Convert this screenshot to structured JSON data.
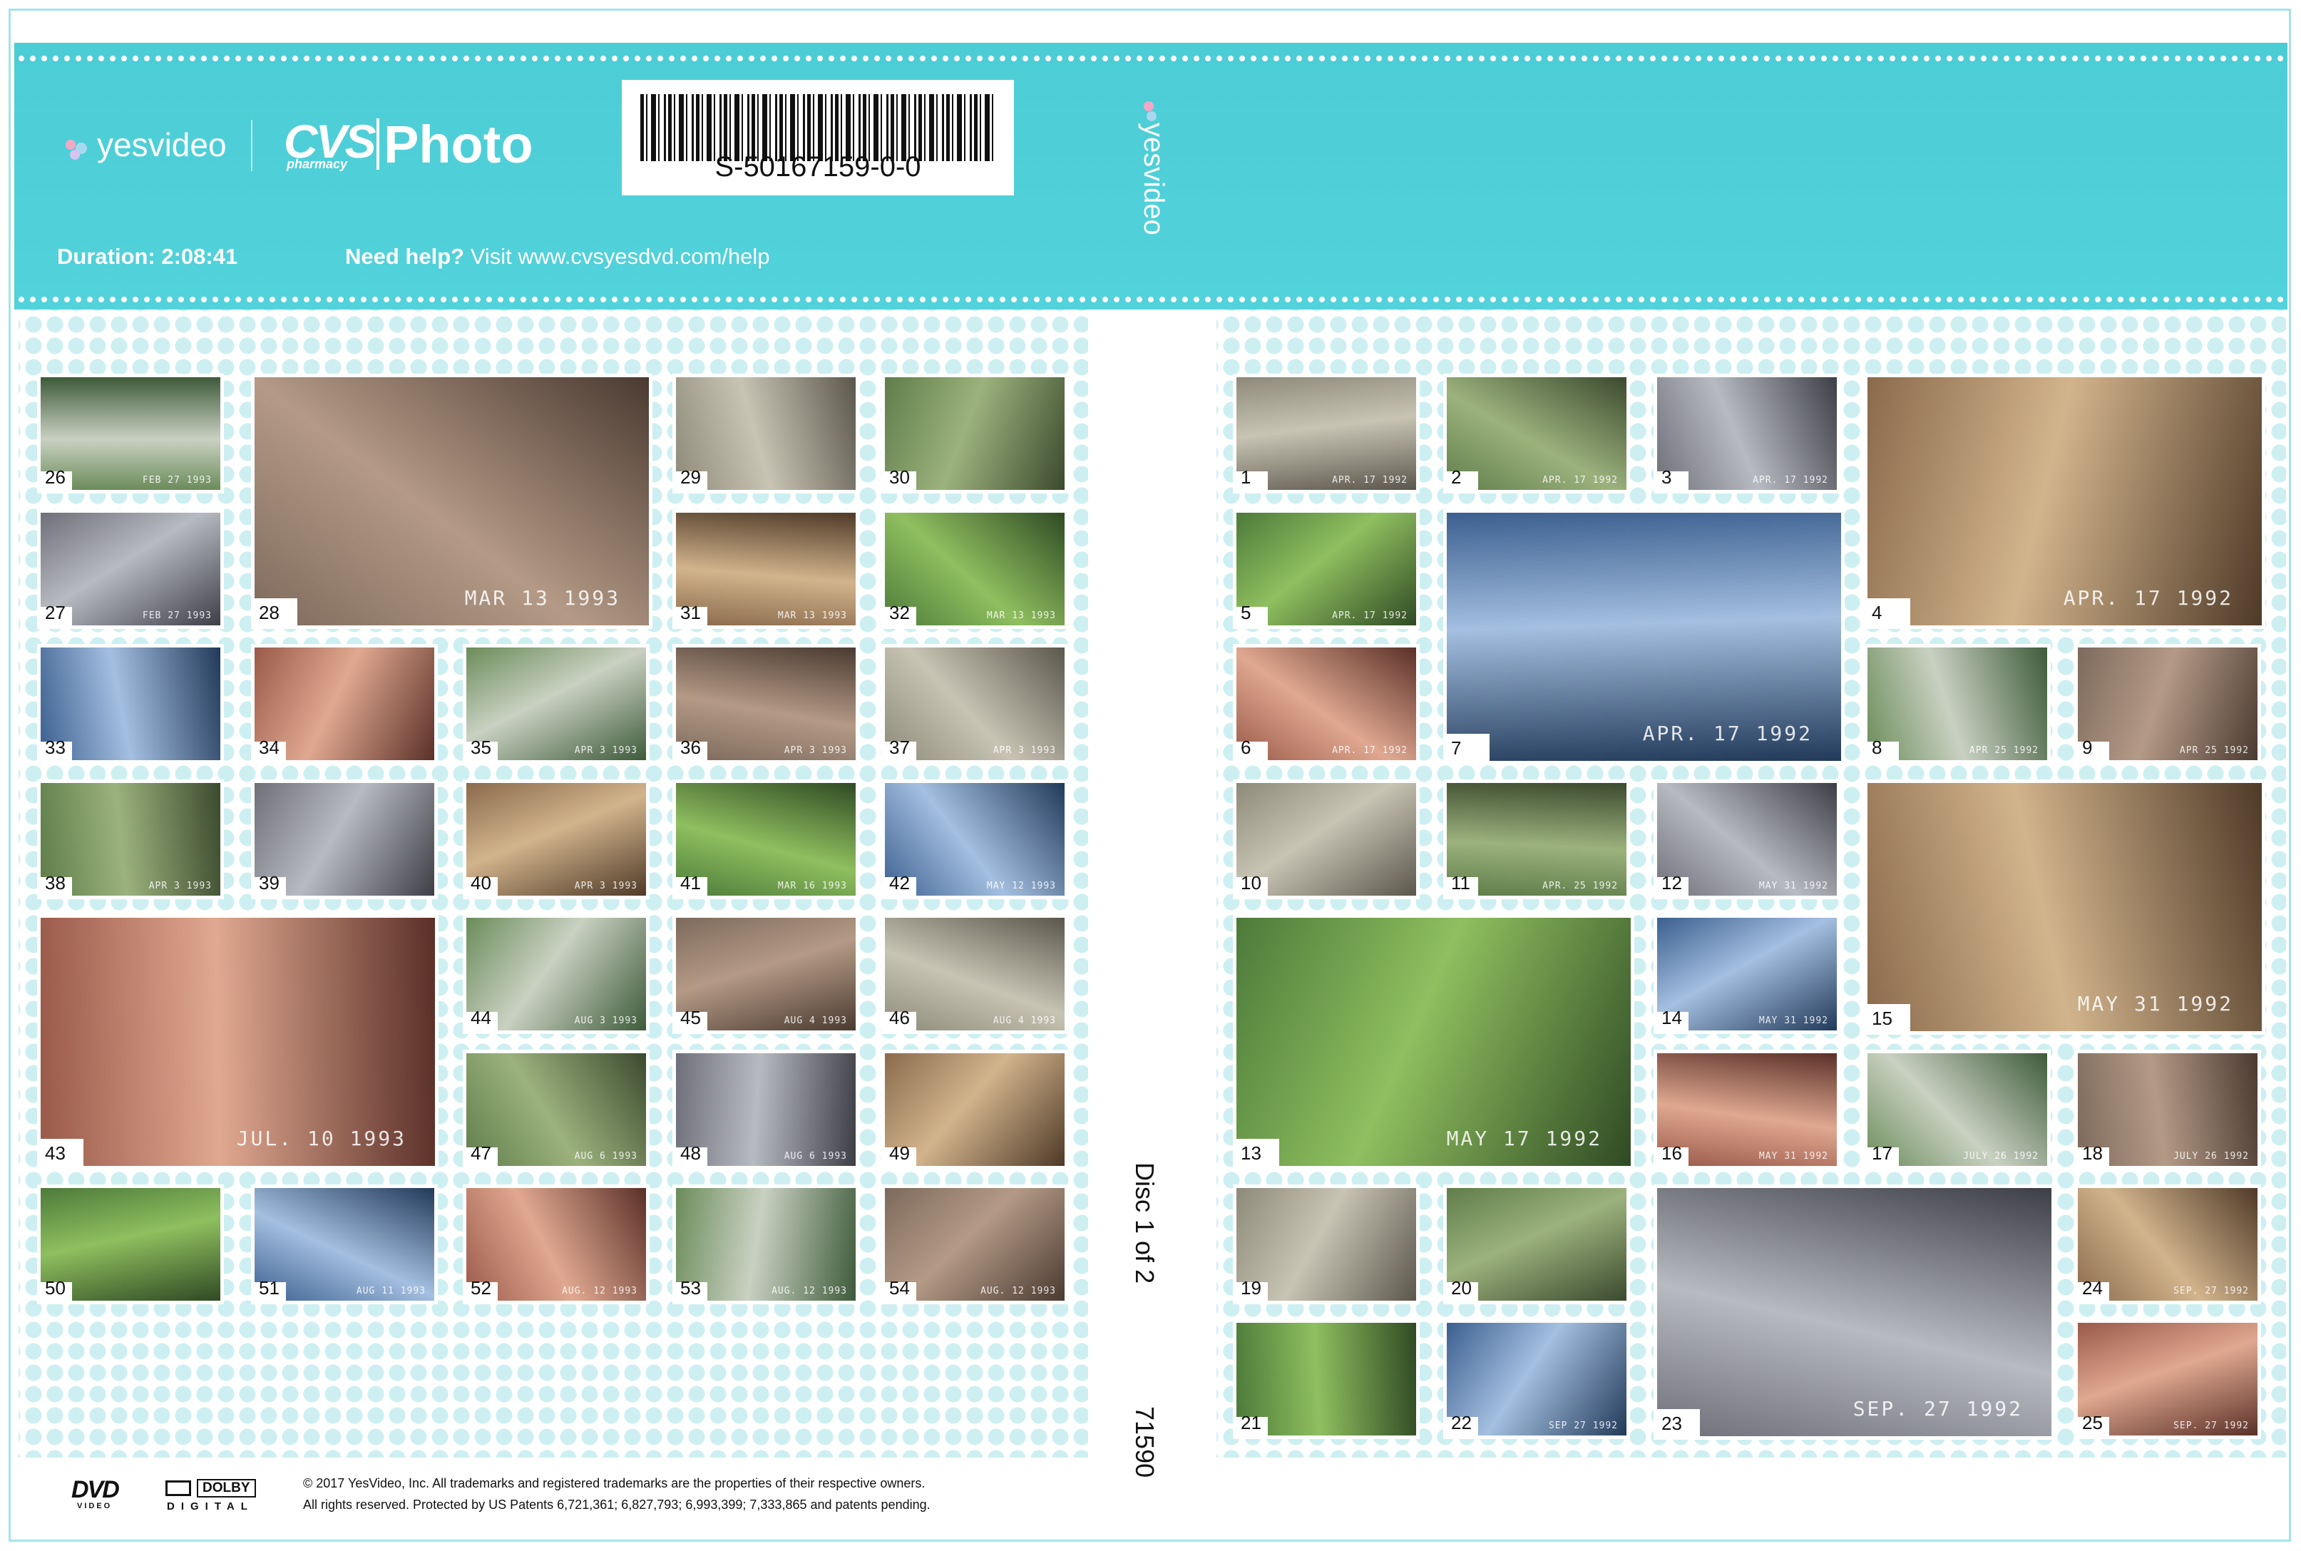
{
  "header": {
    "brand_yesvideo": "yesvideo",
    "brand_cvs": "CVS",
    "brand_pharmacy": "pharmacy",
    "brand_photo": "Photo",
    "barcode_number": "S-50167159-0-0",
    "duration": "Duration: 2:08:41",
    "help_bold": "Need help?",
    "help_text": "Visit www.cvsyesdvd.com/help",
    "spine_brand": "yesvideo"
  },
  "spine": {
    "disc_label": "Disc 1 of 2",
    "code": "71590"
  },
  "footer": {
    "dvd_logo": "DVD",
    "dvd_sub": "VIDEO",
    "dolby_logo": "DOLBY",
    "dolby_sub": "DIGITAL",
    "legal_line1": "© 2017 YesVideo, Inc. All trademarks and registered trademarks are the properties of their respective owners.",
    "legal_line2": "All rights reserved. Protected by US Patents 6,721,361; 6,827,793; 6,993,399; 7,333,865 and patents pending."
  },
  "colors": {
    "band": "#4fd0d8",
    "dot_pattern": "#cdeff2",
    "frame": "#a7e3e6"
  },
  "thumbnails": [
    {
      "num": "26",
      "date": "FEB 27 1993"
    },
    {
      "num": "28",
      "date": "MAR 13 1993"
    },
    {
      "num": "29",
      "date": ""
    },
    {
      "num": "30",
      "date": ""
    },
    {
      "num": "27",
      "date": "FEB 27 1993"
    },
    {
      "num": "31",
      "date": "MAR 13 1993"
    },
    {
      "num": "32",
      "date": "MAR 13 1993"
    },
    {
      "num": "33",
      "date": ""
    },
    {
      "num": "34",
      "date": ""
    },
    {
      "num": "35",
      "date": "APR 3 1993"
    },
    {
      "num": "36",
      "date": "APR 3 1993"
    },
    {
      "num": "37",
      "date": "APR 3 1993"
    },
    {
      "num": "38",
      "date": "APR 3 1993"
    },
    {
      "num": "39",
      "date": ""
    },
    {
      "num": "40",
      "date": "APR 3 1993"
    },
    {
      "num": "41",
      "date": "MAR 16 1993"
    },
    {
      "num": "42",
      "date": "MAY 12 1993"
    },
    {
      "num": "43",
      "date": "JUL. 10 1993"
    },
    {
      "num": "44",
      "date": "AUG 3 1993"
    },
    {
      "num": "45",
      "date": "AUG 4 1993"
    },
    {
      "num": "46",
      "date": "AUG 4 1993"
    },
    {
      "num": "47",
      "date": "AUG 6 1993"
    },
    {
      "num": "48",
      "date": "AUG 6 1993"
    },
    {
      "num": "49",
      "date": ""
    },
    {
      "num": "50",
      "date": ""
    },
    {
      "num": "51",
      "date": "AUG 11 1993"
    },
    {
      "num": "52",
      "date": "AUG. 12 1993"
    },
    {
      "num": "53",
      "date": "AUG. 12 1993"
    },
    {
      "num": "54",
      "date": "AUG. 12 1993"
    },
    {
      "num": "1",
      "date": "APR. 17 1992"
    },
    {
      "num": "2",
      "date": "APR. 17 1992"
    },
    {
      "num": "3",
      "date": "APR. 17 1992"
    },
    {
      "num": "4",
      "date": "APR. 17 1992"
    },
    {
      "num": "5",
      "date": "APR. 17 1992"
    },
    {
      "num": "7",
      "date": "APR. 17 1992"
    },
    {
      "num": "6",
      "date": "APR. 17 1992"
    },
    {
      "num": "8",
      "date": "APR 25 1992"
    },
    {
      "num": "9",
      "date": "APR 25 1992"
    },
    {
      "num": "10",
      "date": ""
    },
    {
      "num": "11",
      "date": "APR. 25 1992"
    },
    {
      "num": "12",
      "date": "MAY 31 1992"
    },
    {
      "num": "15",
      "date": "MAY 31 1992"
    },
    {
      "num": "13",
      "date": "MAY 17 1992"
    },
    {
      "num": "14",
      "date": "MAY 31 1992"
    },
    {
      "num": "16",
      "date": "MAY 31 1992"
    },
    {
      "num": "17",
      "date": "JULY 26 1992"
    },
    {
      "num": "18",
      "date": "JULY 26 1992"
    },
    {
      "num": "19",
      "date": ""
    },
    {
      "num": "20",
      "date": ""
    },
    {
      "num": "23",
      "date": "SEP. 27 1992"
    },
    {
      "num": "24",
      "date": "SEP. 27 1992"
    },
    {
      "num": "21",
      "date": ""
    },
    {
      "num": "22",
      "date": "SEP 27 1992"
    },
    {
      "num": "25",
      "date": "SEP. 27 1992"
    }
  ]
}
